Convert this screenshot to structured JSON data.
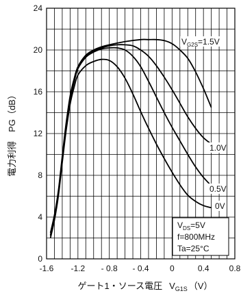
{
  "chart_data": {
    "type": "line",
    "xlabel": "ゲート1・ソース電圧",
    "xlabel_symbol": "V",
    "xlabel_symbol_sub": "G1S",
    "xlabel_unit": "（V）",
    "ylabel": "電力利得　PG（dB）",
    "xlim": [
      -1.6,
      0.8
    ],
    "ylim": [
      0,
      24
    ],
    "x_ticks": [
      "-1.6",
      "-1.2",
      "- 0.8",
      "- 0.4",
      "0",
      "0.4",
      "0.8"
    ],
    "x_tick_values": [
      -1.6,
      -1.2,
      -0.8,
      -0.4,
      0,
      0.4,
      0.8
    ],
    "y_ticks": [
      "0",
      "4",
      "8",
      "12",
      "16",
      "20",
      "24"
    ],
    "y_tick_values": [
      0,
      4,
      8,
      12,
      16,
      20,
      24
    ],
    "grid": true,
    "series": [
      {
        "name": "V_G2S=1.5V",
        "label_main": "V",
        "label_sub": "G2S",
        "label_rest": "=1.5V",
        "x": [
          -1.55,
          -1.5,
          -1.45,
          -1.4,
          -1.35,
          -1.3,
          -1.25,
          -1.2,
          -1.1,
          -1.0,
          -0.9,
          -0.8,
          -0.6,
          -0.4,
          -0.3,
          -0.2,
          -0.1,
          0.0,
          0.1,
          0.2,
          0.3,
          0.4,
          0.5
        ],
        "values": [
          2.5,
          4.2,
          6.5,
          9.8,
          13.0,
          15.6,
          17.2,
          18.4,
          19.5,
          20.0,
          20.3,
          20.5,
          20.8,
          21.0,
          21.0,
          21.0,
          20.9,
          20.6,
          20.0,
          19.2,
          17.9,
          16.3,
          14.5
        ]
      },
      {
        "name": "1.0V",
        "label_main": "1.0V",
        "x": [
          -1.55,
          -1.5,
          -1.45,
          -1.4,
          -1.35,
          -1.3,
          -1.25,
          -1.2,
          -1.1,
          -1.0,
          -0.9,
          -0.8,
          -0.7,
          -0.6,
          -0.5,
          -0.4,
          -0.3,
          -0.2,
          -0.1,
          0.0,
          0.1,
          0.2,
          0.3,
          0.4,
          0.5
        ],
        "values": [
          2.3,
          4.0,
          6.3,
          9.6,
          12.8,
          15.4,
          17.0,
          18.3,
          19.4,
          19.9,
          20.2,
          20.4,
          20.5,
          20.5,
          20.4,
          20.0,
          19.4,
          18.5,
          17.4,
          16.2,
          14.9,
          13.6,
          12.5,
          11.6,
          11.0
        ]
      },
      {
        "name": "0.5V",
        "label_main": "0.5V",
        "x": [
          -1.55,
          -1.5,
          -1.45,
          -1.4,
          -1.35,
          -1.3,
          -1.25,
          -1.2,
          -1.1,
          -1.0,
          -0.9,
          -0.8,
          -0.7,
          -0.6,
          -0.5,
          -0.4,
          -0.3,
          -0.2,
          -0.1,
          0.0,
          0.1,
          0.2,
          0.3,
          0.4,
          0.5
        ],
        "values": [
          2.2,
          3.9,
          6.2,
          9.4,
          12.6,
          15.2,
          16.9,
          18.2,
          19.3,
          19.8,
          20.1,
          20.2,
          20.2,
          20.0,
          19.4,
          18.4,
          17.0,
          15.5,
          14.0,
          12.6,
          11.3,
          10.0,
          8.8,
          7.8,
          7.0
        ]
      },
      {
        "name": "0V",
        "label_main": "0V",
        "x": [
          -1.55,
          -1.5,
          -1.45,
          -1.4,
          -1.35,
          -1.3,
          -1.25,
          -1.2,
          -1.1,
          -1.0,
          -0.9,
          -0.8,
          -0.7,
          -0.6,
          -0.5,
          -0.4,
          -0.3,
          -0.2,
          -0.1,
          0.0,
          0.1,
          0.2,
          0.3,
          0.4,
          0.5
        ],
        "values": [
          2.0,
          3.7,
          6.0,
          9.2,
          12.3,
          14.8,
          16.4,
          17.6,
          18.5,
          18.9,
          19.1,
          19.0,
          18.4,
          17.3,
          15.8,
          14.1,
          12.5,
          11.0,
          9.6,
          8.3,
          7.1,
          6.1,
          5.5,
          5.1,
          4.9
        ]
      }
    ],
    "conditions": {
      "vds_main": "V",
      "vds_sub": "DS",
      "vds_rest": "=5V",
      "freq": "f=800MHz",
      "temp": "Ta=25°C"
    }
  }
}
